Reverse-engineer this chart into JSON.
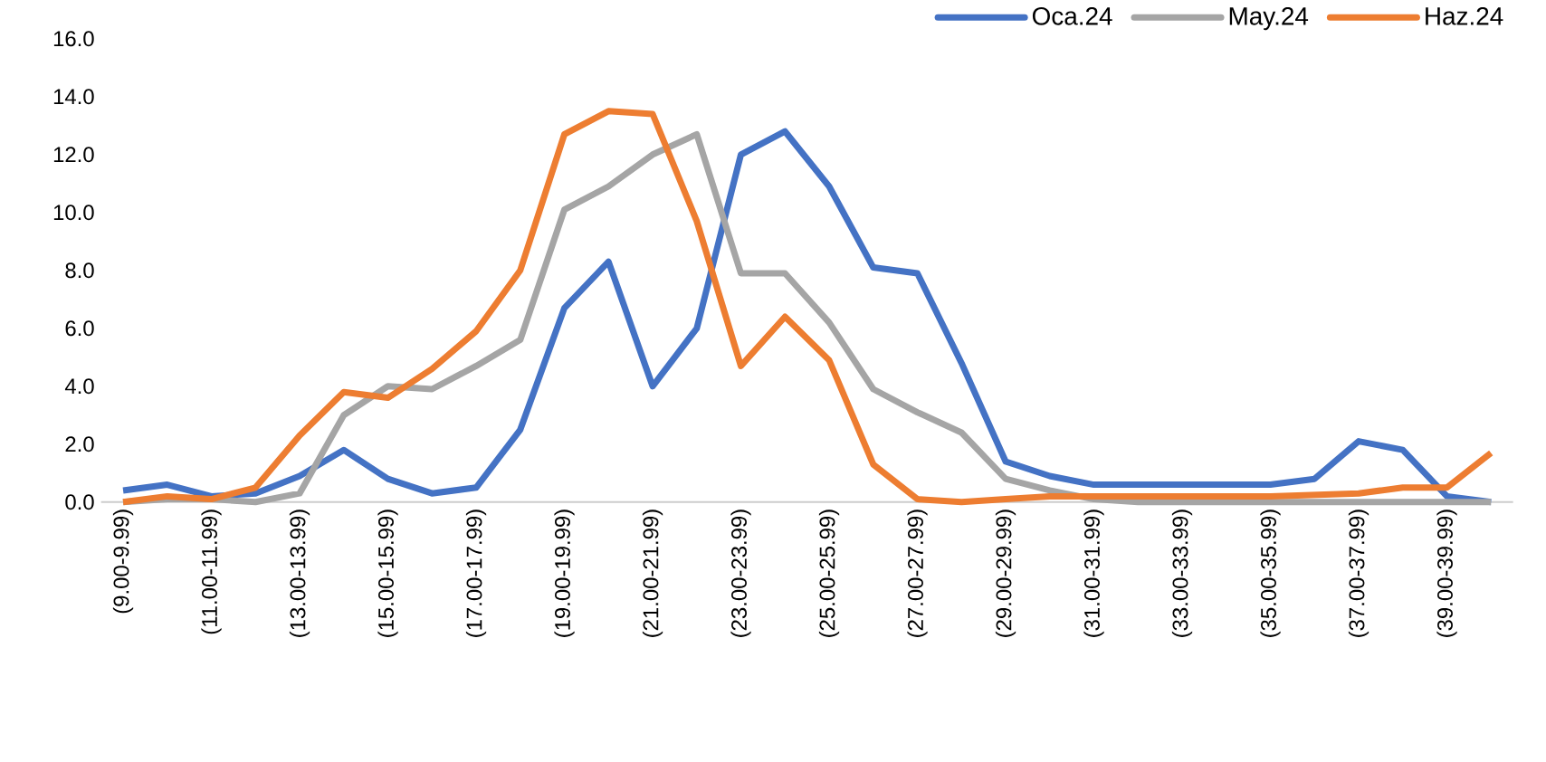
{
  "chart_data": {
    "type": "line",
    "categories": [
      "(9.00-9.99)",
      null,
      "(11.00-11.99)",
      null,
      "(13.00-13.99)",
      null,
      "(15.00-15.99)",
      null,
      "(17.00-17.99)",
      null,
      "(19.00-19.99)",
      null,
      "(21.00-21.99)",
      null,
      "(23.00-23.99)",
      null,
      "(25.00-25.99)",
      null,
      "(27.00-27.99)",
      null,
      "(29.00-29.99)",
      null,
      "(31.00-31.99)",
      null,
      "(33.00-33.99)",
      null,
      "(35.00-35.99)",
      null,
      "(37.00-37.99)",
      null,
      "(39.00-39.99)",
      null
    ],
    "series": [
      {
        "name": "Oca.24",
        "color": "#4472c4",
        "values": [
          0.4,
          0.6,
          0.2,
          0.3,
          0.9,
          1.8,
          0.8,
          0.3,
          0.5,
          2.5,
          6.7,
          8.3,
          4.0,
          6.0,
          12.0,
          12.8,
          10.9,
          8.1,
          7.9,
          4.8,
          1.4,
          0.9,
          0.6,
          0.6,
          0.6,
          0.6,
          0.6,
          0.8,
          2.1,
          1.8,
          0.2,
          0.0
        ]
      },
      {
        "name": "May.24",
        "color": "#a5a5a5",
        "values": [
          0.0,
          0.1,
          0.1,
          0.0,
          0.3,
          3.0,
          4.0,
          3.9,
          4.7,
          5.6,
          10.1,
          10.9,
          12.0,
          12.7,
          7.9,
          7.9,
          6.2,
          3.9,
          3.1,
          2.4,
          0.8,
          0.4,
          0.1,
          0.0,
          0.0,
          0.0,
          0.0,
          0.0,
          0.0,
          0.0,
          0.0,
          0.0
        ]
      },
      {
        "name": "Haz.24",
        "color": "#ed7d31",
        "values": [
          0.0,
          0.2,
          0.1,
          0.5,
          2.3,
          3.8,
          3.6,
          4.6,
          5.9,
          8.0,
          12.7,
          13.5,
          13.4,
          9.7,
          4.7,
          6.4,
          4.9,
          1.3,
          0.1,
          0.0,
          0.1,
          0.2,
          0.2,
          0.2,
          0.2,
          0.2,
          0.2,
          0.25,
          0.3,
          0.5,
          0.5,
          1.7
        ]
      }
    ],
    "ylim": [
      0,
      16
    ],
    "yticks": [
      {
        "value": 0,
        "label": "0.0"
      },
      {
        "value": 2,
        "label": "2.0"
      },
      {
        "value": 4,
        "label": "4.0"
      },
      {
        "value": 6,
        "label": "6.0"
      },
      {
        "value": 8,
        "label": "8.0"
      },
      {
        "value": 10,
        "label": "10.0"
      },
      {
        "value": 12,
        "label": "12.0"
      },
      {
        "value": 14,
        "label": "14.0"
      },
      {
        "value": 16,
        "label": "16.0"
      }
    ],
    "legend": "top right"
  }
}
